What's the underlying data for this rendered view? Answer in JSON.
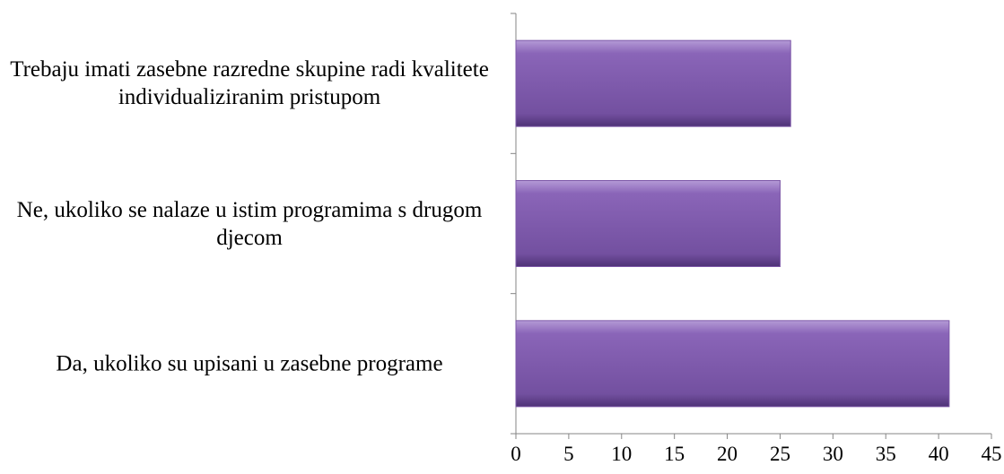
{
  "chart_data": {
    "type": "barh",
    "categories": [
      "Trebaju imati zasebne razredne skupine radi kvalitete individualiziranim pristupom",
      "Ne, ukoliko se nalaze u istim programima s drugom djecom",
      "Da, ukoliko su upisani u zasebne programe"
    ],
    "values": [
      26,
      25,
      41
    ],
    "color": "#7d58a8",
    "xlim": [
      0,
      45
    ],
    "xticks": [
      0,
      5,
      10,
      15,
      20,
      25,
      30,
      35,
      40,
      45
    ]
  }
}
